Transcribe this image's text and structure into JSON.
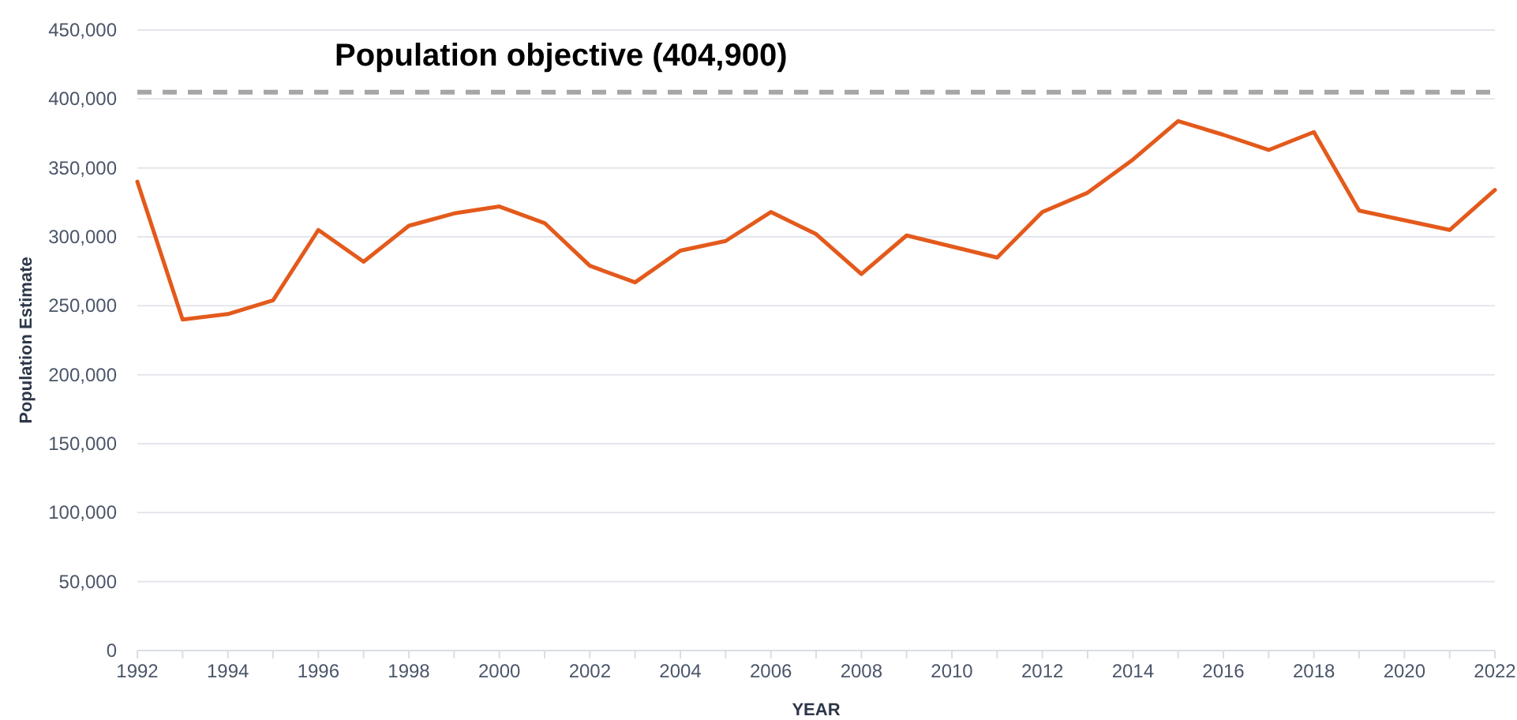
{
  "chart_data": {
    "type": "line",
    "xlabel": "YEAR",
    "ylabel": "Population Estimate",
    "x": [
      1992,
      1993,
      1994,
      1995,
      1996,
      1997,
      1998,
      1999,
      2000,
      2001,
      2002,
      2003,
      2004,
      2005,
      2006,
      2007,
      2008,
      2009,
      2010,
      2011,
      2012,
      2013,
      2014,
      2015,
      2016,
      2017,
      2018,
      2019,
      2020,
      2021,
      2022
    ],
    "series": [
      {
        "color": "#e35a1c",
        "values": [
          340000,
          240000,
          244000,
          254000,
          305000,
          282000,
          308000,
          317000,
          322000,
          310000,
          279000,
          267000,
          290000,
          297000,
          318000,
          302000,
          273000,
          301000,
          293000,
          285000,
          318000,
          332000,
          356000,
          384000,
          374000,
          363000,
          376000,
          319000,
          312000,
          305000,
          334000
        ]
      }
    ],
    "xlim": [
      1992,
      2022
    ],
    "xticks": [
      1992,
      {
        "value": 1993,
        "label": null
      },
      1994,
      {
        "value": 1995,
        "label": null
      },
      1996,
      {
        "value": 1997,
        "label": null
      },
      1998,
      {
        "value": 1999,
        "label": null
      },
      2000,
      {
        "value": 2001,
        "label": null
      },
      2002,
      {
        "value": 2003,
        "label": null
      },
      2004,
      {
        "value": 2005,
        "label": null
      },
      2006,
      {
        "value": 2007,
        "label": null
      },
      2008,
      {
        "value": 2009,
        "label": null
      },
      2010,
      {
        "value": 2011,
        "label": null
      },
      2012,
      {
        "value": 2013,
        "label": null
      },
      2014,
      {
        "value": 2015,
        "label": null
      },
      2016,
      {
        "value": 2017,
        "label": null
      },
      2018,
      {
        "value": 2019,
        "label": null
      },
      2020,
      {
        "value": 2021,
        "label": null
      },
      2022
    ],
    "ylim": [
      0,
      450000
    ],
    "yticks": [
      {
        "value": 0,
        "label": "0"
      },
      {
        "value": 50000,
        "label": "50,000"
      },
      {
        "value": 100000,
        "label": "100,000"
      },
      {
        "value": 150000,
        "label": "150,000"
      },
      {
        "value": 200000,
        "label": "200,000"
      },
      {
        "value": 250000,
        "label": "250,000"
      },
      {
        "value": 300000,
        "label": "300,000"
      },
      {
        "value": 350000,
        "label": "350,000"
      },
      {
        "value": 400000,
        "label": "400,000"
      },
      {
        "value": 450000,
        "label": "450,000"
      }
    ],
    "grid": "y",
    "marker": "none",
    "line_style": "solid",
    "ref_lines": [
      {
        "axis": "y",
        "value": 404900,
        "label": "Population objective (404,900)",
        "color": "#a6a6a6",
        "line_style": "dashed"
      }
    ]
  }
}
